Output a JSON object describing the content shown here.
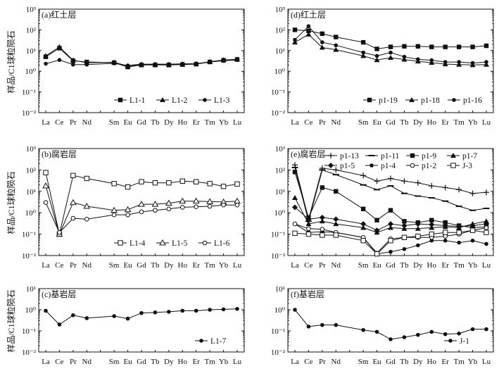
{
  "figure": {
    "ylabel": "样品/C1球粒陨石"
  },
  "chart_data": [
    {
      "id": "a",
      "type": "line",
      "title": "(a)红土层",
      "ylabel": "样品/C1球粒陨石",
      "yscale": "log",
      "ylim": [
        0.01,
        1000
      ],
      "yticks": [
        "10⁻²",
        "10⁻¹",
        "10⁰",
        "10¹",
        "10²",
        "10³"
      ],
      "elements": [
        "La",
        "Ce",
        "Pr",
        "Nd",
        "Sm",
        "Eu",
        "Gd",
        "Tb",
        "Dy",
        "Ho",
        "Er",
        "Tm",
        "Yb",
        "Lu"
      ],
      "tick_labels": [
        {
          "text": "La",
          "col": 0
        },
        {
          "text": "Ce",
          "col": 1
        },
        {
          "text": "Pr",
          "col": 2
        },
        {
          "text": "Nd",
          "col": 3
        },
        {
          "text": "Sm",
          "col": 5
        },
        {
          "text": "Eu",
          "col": 6
        },
        {
          "text": "Gd",
          "col": 7
        },
        {
          "text": "Tb",
          "col": 8
        },
        {
          "text": "Dy",
          "col": 9
        },
        {
          "text": "Ho",
          "col": 10
        },
        {
          "text": "Er",
          "col": 11
        },
        {
          "text": "Tm",
          "col": 12
        },
        {
          "text": "Yb",
          "col": 13
        },
        {
          "text": "Lu",
          "col": 14
        }
      ],
      "legend": "bottom-right",
      "series": [
        {
          "name": "L1-1",
          "marker": "square",
          "values": [
            5,
            13,
            3.2,
            2.8,
            2.6,
            1.6,
            2,
            2,
            2,
            2.1,
            2.2,
            2.8,
            3.4,
            3.7
          ]
        },
        {
          "name": "L1-2",
          "marker": "triangle",
          "values": [
            5.5,
            15,
            3.4,
            2.6,
            2.7,
            1.8,
            2.1,
            2.1,
            2.1,
            2.2,
            2.3,
            2.9,
            3.5,
            3.8
          ]
        },
        {
          "name": "L1-3",
          "marker": "circle",
          "values": [
            2.3,
            3.5,
            2.1,
            2.1,
            2.4,
            1.9,
            2.2,
            2.2,
            2.2,
            2.3,
            2.3,
            2.8,
            3.2,
            3.5
          ]
        }
      ]
    },
    {
      "id": "d",
      "type": "line",
      "title": "(d)红土层",
      "yscale": "log",
      "ylim": [
        0.01,
        1000
      ],
      "yticks": [
        "10⁻²",
        "10⁻¹",
        "10⁰",
        "10¹",
        "10²",
        "10³"
      ],
      "elements": [
        "La",
        "Ce",
        "Pr",
        "Nd",
        "Sm",
        "Eu",
        "Gd",
        "Tb",
        "Dy",
        "Ho",
        "Er",
        "Tm",
        "Yb",
        "Lu"
      ],
      "tick_labels": [
        {
          "text": "La",
          "col": 0
        },
        {
          "text": "Ce",
          "col": 1
        },
        {
          "text": "Pr",
          "col": 2
        },
        {
          "text": "Nd",
          "col": 3
        },
        {
          "text": "Sm",
          "col": 5
        },
        {
          "text": "Eu",
          "col": 6
        },
        {
          "text": "Gd",
          "col": 7
        },
        {
          "text": "Tb",
          "col": 8
        },
        {
          "text": "Dy",
          "col": 9
        },
        {
          "text": "Ho",
          "col": 10
        },
        {
          "text": "Er",
          "col": 11
        },
        {
          "text": "Tm",
          "col": 12
        },
        {
          "text": "Yb",
          "col": 13
        },
        {
          "text": "Lu",
          "col": 14
        }
      ],
      "legend": "bottom-right",
      "series": [
        {
          "name": "p1-19",
          "marker": "square",
          "values": [
            100,
            90,
            65,
            45,
            25,
            12,
            15,
            16,
            16,
            15,
            15,
            15,
            15,
            17
          ]
        },
        {
          "name": "p1-18",
          "marker": "triangle",
          "values": [
            25,
            60,
            14,
            11,
            5.5,
            3.5,
            4.5,
            3.7,
            3,
            2.6,
            2.2,
            2.1,
            2,
            2.1
          ]
        },
        {
          "name": "p1-16",
          "marker": "circle",
          "values": [
            33,
            150,
            25,
            18,
            8,
            5.5,
            8,
            5,
            3.8,
            3.4,
            2.8,
            2.8,
            2.5,
            2.8
          ]
        }
      ]
    },
    {
      "id": "b",
      "type": "line",
      "title": "(b)腐岩层",
      "yscale": "log",
      "ylim": [
        0.01,
        1000
      ],
      "yticks": [
        "10⁻²",
        "10⁻¹",
        "10⁰",
        "10¹",
        "10²",
        "10³"
      ],
      "elements": [
        "La",
        "Ce",
        "Pr",
        "Nd",
        "Sm",
        "Eu",
        "Gd",
        "Tb",
        "Dy",
        "Ho",
        "Er",
        "Tm",
        "Yb",
        "Lu"
      ],
      "tick_labels": [
        {
          "text": "La",
          "col": 0
        },
        {
          "text": "Ce",
          "col": 1
        },
        {
          "text": "Pr",
          "col": 2
        },
        {
          "text": "Nd",
          "col": 3
        },
        {
          "text": "Sm",
          "col": 5
        },
        {
          "text": "Eu",
          "col": 6
        },
        {
          "text": "Gd",
          "col": 7
        },
        {
          "text": "Tb",
          "col": 8
        },
        {
          "text": "Dy",
          "col": 9
        },
        {
          "text": "Ho",
          "col": 10
        },
        {
          "text": "Er",
          "col": 11
        },
        {
          "text": "Tm",
          "col": 12
        },
        {
          "text": "Yb",
          "col": 13
        },
        {
          "text": "Lu",
          "col": 14
        }
      ],
      "legend": "bottom-right",
      "series": [
        {
          "name": "L1-4",
          "marker": "square-open",
          "values": [
            75,
            0.1,
            55,
            40,
            23,
            16,
            28,
            25,
            25,
            30,
            28,
            23,
            17,
            22
          ]
        },
        {
          "name": "L1-5",
          "marker": "triangle-open",
          "values": [
            18,
            0.1,
            3,
            2,
            1.3,
            1.4,
            2.5,
            2.5,
            2.8,
            3.5,
            3.5,
            3.3,
            3.2,
            3.5
          ]
        },
        {
          "name": "L1-6",
          "marker": "circle-open",
          "values": [
            3,
            0.12,
            0.55,
            0.5,
            0.8,
            0.8,
            1.1,
            1.3,
            1.5,
            1.8,
            1.9,
            2,
            2.3,
            2.3
          ]
        }
      ]
    },
    {
      "id": "e",
      "type": "line",
      "title": "(e)腐岩层",
      "yscale": "log",
      "ylim": [
        0.01,
        1000
      ],
      "yticks": [
        "10⁻²",
        "10⁻¹",
        "10⁰",
        "10¹",
        "10²",
        "10³"
      ],
      "elements": [
        "La",
        "Ce",
        "Pr",
        "Nd",
        "Sm",
        "Eu",
        "Gd",
        "Tb",
        "Dy",
        "Ho",
        "Er",
        "Tm",
        "Yb",
        "Lu"
      ],
      "tick_labels": [
        {
          "text": "La",
          "col": 0
        },
        {
          "text": "Ce",
          "col": 1
        },
        {
          "text": "Pr",
          "col": 2
        },
        {
          "text": "Nd",
          "col": 3
        },
        {
          "text": "Sm",
          "col": 5
        },
        {
          "text": "Eu",
          "col": 6
        },
        {
          "text": "Gd",
          "col": 7
        },
        {
          "text": "Tb",
          "col": 8
        },
        {
          "text": "Dy",
          "col": 9
        },
        {
          "text": "Ho",
          "col": 10
        },
        {
          "text": "Er",
          "col": 11
        },
        {
          "text": "Tm",
          "col": 12
        },
        {
          "text": "Yb",
          "col": 13
        },
        {
          "text": "Lu",
          "col": 14
        }
      ],
      "legend": "top-right",
      "series": [
        {
          "name": "p1-13",
          "marker": "plus",
          "values": [
            170,
            0.5,
            120,
            100,
            55,
            30,
            40,
            30,
            25,
            18,
            15,
            12,
            8,
            9
          ]
        },
        {
          "name": "p1-11",
          "marker": "dash",
          "values": [
            130,
            0.4,
            100,
            60,
            20,
            12,
            18,
            8,
            6,
            5,
            3.5,
            2,
            1.3,
            1.6
          ]
        },
        {
          "name": "p1-9",
          "marker": "square",
          "values": [
            80,
            0.6,
            15,
            10,
            1.5,
            0.45,
            1.3,
            0.4,
            0.35,
            0.45,
            0.35,
            0.25,
            0.2,
            0.22
          ]
        },
        {
          "name": "p1-7",
          "marker": "triangle",
          "values": [
            5,
            0.3,
            0.4,
            0.3,
            0.2,
            0.12,
            0.2,
            0.18,
            0.18,
            0.2,
            0.22,
            0.2,
            0.3,
            0.4
          ]
        },
        {
          "name": "p1-5",
          "marker": "diamond",
          "values": [
            1.8,
            0.5,
            0.6,
            0.5,
            0.3,
            0.15,
            0.3,
            0.25,
            0.3,
            0.28,
            0.25,
            0.23,
            0.25,
            0.3
          ]
        },
        {
          "name": "p1-4",
          "marker": "circle",
          "values": [
            0.3,
            0.12,
            0.13,
            0.12,
            0.07,
            0.012,
            0.015,
            0.02,
            0.03,
            0.05,
            0.05,
            0.04,
            0.05,
            0.035
          ]
        },
        {
          "name": "p1-2",
          "marker": "circle-open",
          "values": [
            0.3,
            0.18,
            0.17,
            0.12,
            0.07,
            0.013,
            0.06,
            0.07,
            0.07,
            0.07,
            0.08,
            0.1,
            0.15,
            0.2
          ]
        },
        {
          "name": "J-3",
          "marker": "square-open",
          "values": [
            0.11,
            0.1,
            0.09,
            0.09,
            0.05,
            0.012,
            0.05,
            0.07,
            0.08,
            0.1,
            0.12,
            0.12,
            0.15,
            0.12
          ]
        }
      ]
    },
    {
      "id": "c",
      "type": "line",
      "title": "(c)基岩层",
      "yscale": "log",
      "ylim": [
        0.01,
        10
      ],
      "yticks": [
        "10⁻²",
        "10⁻¹",
        "10⁰",
        "10¹"
      ],
      "elements": [
        "La",
        "Ce",
        "Pr",
        "Nd",
        "Sm",
        "Eu",
        "Gd",
        "Tb",
        "Dy",
        "Ho",
        "Er",
        "Tm",
        "Yb",
        "Lu"
      ],
      "tick_labels": [
        {
          "text": "La",
          "col": 0
        },
        {
          "text": "Ce",
          "col": 1
        },
        {
          "text": "Pr",
          "col": 2
        },
        {
          "text": "Nd",
          "col": 3
        },
        {
          "text": "Sm",
          "col": 5
        },
        {
          "text": "Eu",
          "col": 6
        },
        {
          "text": "Gd",
          "col": 7
        },
        {
          "text": "Tb",
          "col": 8
        },
        {
          "text": "Dy",
          "col": 9
        },
        {
          "text": "Ho",
          "col": 10
        },
        {
          "text": "Er",
          "col": 11
        },
        {
          "text": "Tm",
          "col": 12
        },
        {
          "text": "Yb",
          "col": 13
        },
        {
          "text": "Lu",
          "col": 14
        }
      ],
      "legend": "bottom-right",
      "series": [
        {
          "name": "L1-7",
          "marker": "circle",
          "values": [
            0.9,
            0.2,
            0.55,
            0.4,
            0.5,
            0.38,
            0.7,
            0.75,
            0.8,
            0.9,
            0.9,
            1,
            1.05,
            1.1
          ]
        }
      ]
    },
    {
      "id": "f",
      "type": "line",
      "title": "(f)基岩层",
      "yscale": "log",
      "ylim": [
        0.01,
        10
      ],
      "yticks": [
        "10⁻²",
        "10⁻¹",
        "10⁰",
        "10¹"
      ],
      "elements": [
        "La",
        "Ce",
        "Pr",
        "Nd",
        "Sm",
        "Eu",
        "Gd",
        "Tb",
        "Dy",
        "Ho",
        "Er",
        "Tm",
        "Yb",
        "Lu"
      ],
      "tick_labels": [
        {
          "text": "La",
          "col": 0
        },
        {
          "text": "Ce",
          "col": 1
        },
        {
          "text": "Pr",
          "col": 2
        },
        {
          "text": "Nd",
          "col": 3
        },
        {
          "text": "Sm",
          "col": 5
        },
        {
          "text": "Eu",
          "col": 6
        },
        {
          "text": "Gd",
          "col": 7
        },
        {
          "text": "Tb",
          "col": 8
        },
        {
          "text": "Dy",
          "col": 9
        },
        {
          "text": "Ho",
          "col": 10
        },
        {
          "text": "Er",
          "col": 11
        },
        {
          "text": "Tm",
          "col": 12
        },
        {
          "text": "Yb",
          "col": 13
        },
        {
          "text": "Lu",
          "col": 14
        }
      ],
      "legend": "bottom-right",
      "series": [
        {
          "name": "J-1",
          "marker": "circle",
          "values": [
            1,
            0.16,
            0.19,
            0.19,
            0.11,
            0.09,
            0.04,
            0.05,
            0.065,
            0.09,
            0.07,
            0.075,
            0.12,
            0.12
          ]
        }
      ]
    }
  ]
}
